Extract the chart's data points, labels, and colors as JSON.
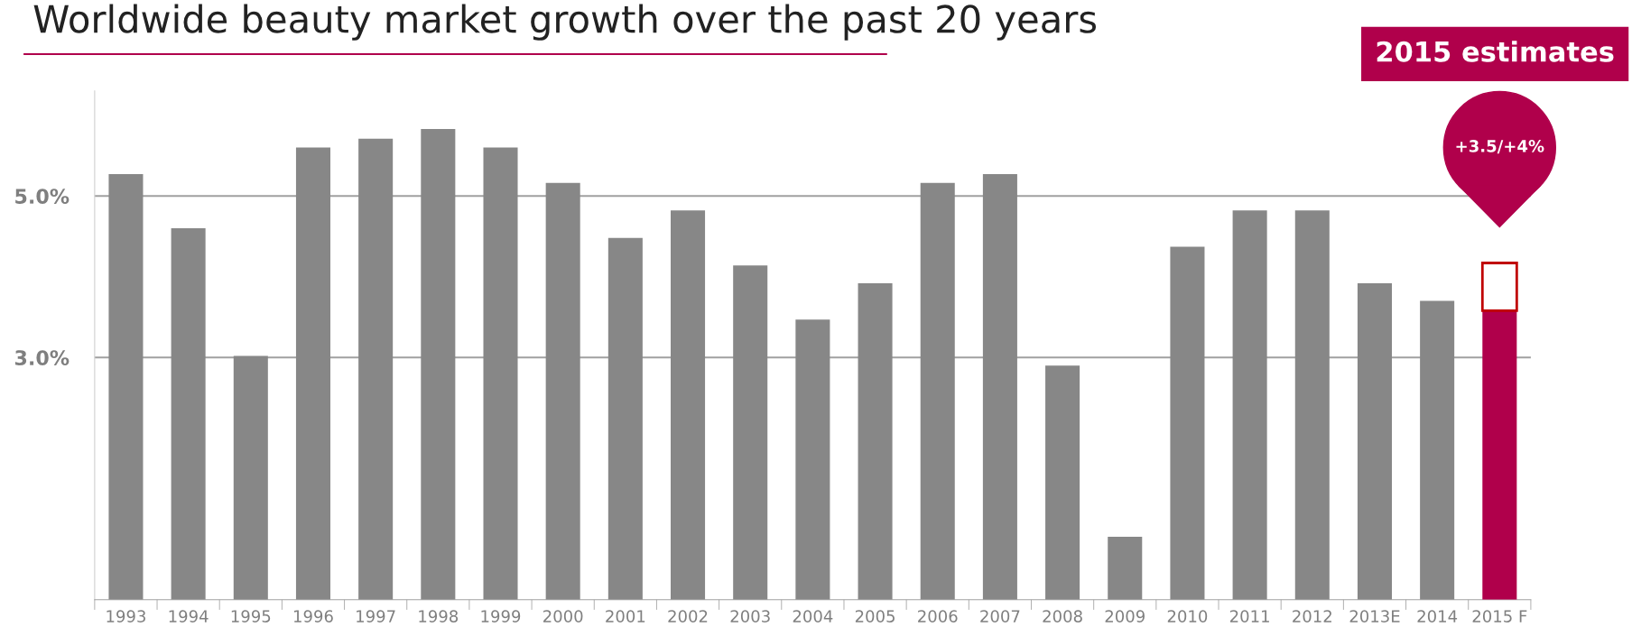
{
  "chart_data": {
    "type": "bar",
    "title": "Worldwide beauty market growth over the past 20 years",
    "categories": [
      "1993",
      "1994",
      "1995",
      "1996",
      "1997",
      "1998",
      "1999",
      "2000",
      "2001",
      "2002",
      "2003",
      "2004",
      "2005",
      "2006",
      "2007",
      "2008",
      "2009",
      "2010",
      "2011",
      "2012",
      "2013E",
      "2014",
      "2015 F"
    ],
    "stacked": true,
    "series": [
      {
        "color": "#878787",
        "colors": [
          "#878787",
          "#878787",
          "#878787",
          "#878787",
          "#878787",
          "#878787",
          "#878787",
          "#878787",
          "#878787",
          "#878787",
          "#878787",
          "#878787",
          "#878787",
          "#878787",
          "#878787",
          "#878787",
          "#878787",
          "#878787",
          "#878787",
          "#878787",
          "#878787",
          "#878787",
          "#b0004b"
        ],
        "values": [
          5.27,
          4.6,
          3.02,
          5.6,
          5.71,
          5.83,
          5.6,
          5.16,
          4.48,
          4.82,
          4.14,
          3.47,
          3.92,
          5.16,
          5.27,
          2.9,
          0.78,
          4.37,
          4.82,
          4.82,
          3.92,
          3.7,
          3.58
        ]
      },
      {
        "color": "#c00000",
        "values": [
          null,
          null,
          null,
          null,
          null,
          null,
          null,
          null,
          null,
          null,
          null,
          null,
          null,
          null,
          null,
          null,
          null,
          null,
          null,
          null,
          null,
          null,
          0.59
        ]
      }
    ],
    "ylim": [
      0,
      6.3
    ],
    "yticks": [
      {
        "value": 3,
        "label": "3.0%"
      },
      {
        "value": 5,
        "label": "5.0%"
      }
    ],
    "grid": "y",
    "legend": false,
    "annotations": [
      "2015 estimates",
      "+3.5/+4%"
    ]
  }
}
